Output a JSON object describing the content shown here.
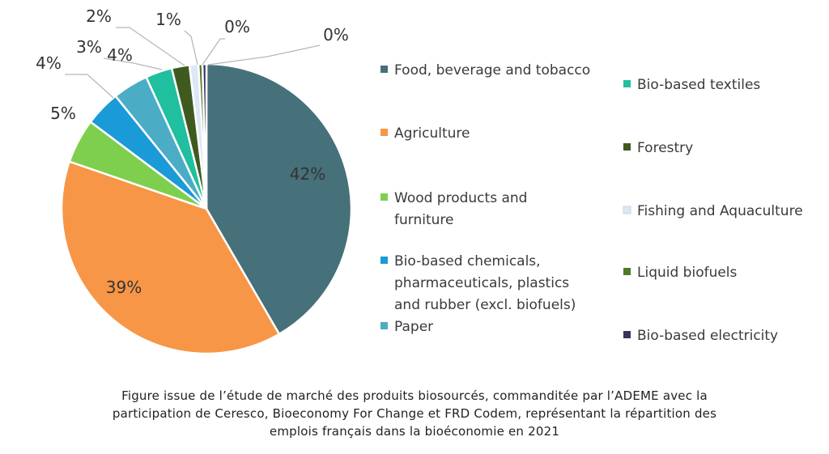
{
  "chart_data": {
    "type": "pie",
    "title": "",
    "slices": [
      {
        "name": "Food, beverage and tobacco",
        "value": 42,
        "label": "42%",
        "color": "#46707a"
      },
      {
        "name": "Agriculture",
        "value": 39,
        "label": "39%",
        "color": "#f79646"
      },
      {
        "name": "Wood products and furniture",
        "value": 5,
        "label": "5%",
        "color": "#7fcf4f"
      },
      {
        "name": "Bio-based chemicals, pharmaceuticals, plastics and rubber (excl. biofuels)",
        "value": 4,
        "label": "4%",
        "color": "#1b9ad8"
      },
      {
        "name": "Paper",
        "value": 4,
        "label": "4%",
        "color": "#4bacc6"
      },
      {
        "name": "Bio-based textiles",
        "value": 3,
        "label": "3%",
        "color": "#1fbf9f"
      },
      {
        "name": "Forestry",
        "value": 2,
        "label": "2%",
        "color": "#3f5a1f"
      },
      {
        "name": "Fishing and Aquaculture",
        "value": 1,
        "label": "1%",
        "color": "#dce8f5"
      },
      {
        "name": "Liquid biofuels",
        "value": 0,
        "label": "0%",
        "color": "#4f7a28"
      },
      {
        "name": "Bio-based electricity",
        "value": 0,
        "label": "0%",
        "color": "#403060"
      }
    ],
    "legend": {
      "placement": "right",
      "left_column": [
        {
          "label_lines": [
            "Food, beverage and tobacco"
          ],
          "color": "#46707a"
        },
        {
          "label_lines": [
            "Agriculture"
          ],
          "color": "#f79646"
        },
        {
          "label_lines": [
            "Wood products and",
            "furniture"
          ],
          "color": "#7fcf4f"
        },
        {
          "label_lines": [
            "Bio-based chemicals,",
            "pharmaceuticals, plastics",
            "and rubber (excl. biofuels)"
          ],
          "color": "#1b9ad8"
        },
        {
          "label_lines": [
            "Paper"
          ],
          "color": "#4bacc6"
        }
      ],
      "right_column": [
        {
          "label_lines": [
            "Bio-based textiles"
          ],
          "color": "#1fbf9f"
        },
        {
          "label_lines": [
            "Forestry"
          ],
          "color": "#3f5a1f"
        },
        {
          "label_lines": [
            "Fishing and Aquaculture"
          ],
          "color": "#dce8f5"
        },
        {
          "label_lines": [
            "Liquid biofuels"
          ],
          "color": "#4f7a28"
        },
        {
          "label_lines": [
            "Bio-based electricity"
          ],
          "color": "#403060"
        }
      ]
    }
  },
  "caption": {
    "lines": [
      "Figure issue de l’étude de marché des produits biosourcés, commanditée par l’ADEME avec la",
      "participation de Ceresco, Bioeconomy For Change et FRD Codem, représentant la répartition des",
      "emplois français dans la bioéconomie en 2021"
    ]
  }
}
